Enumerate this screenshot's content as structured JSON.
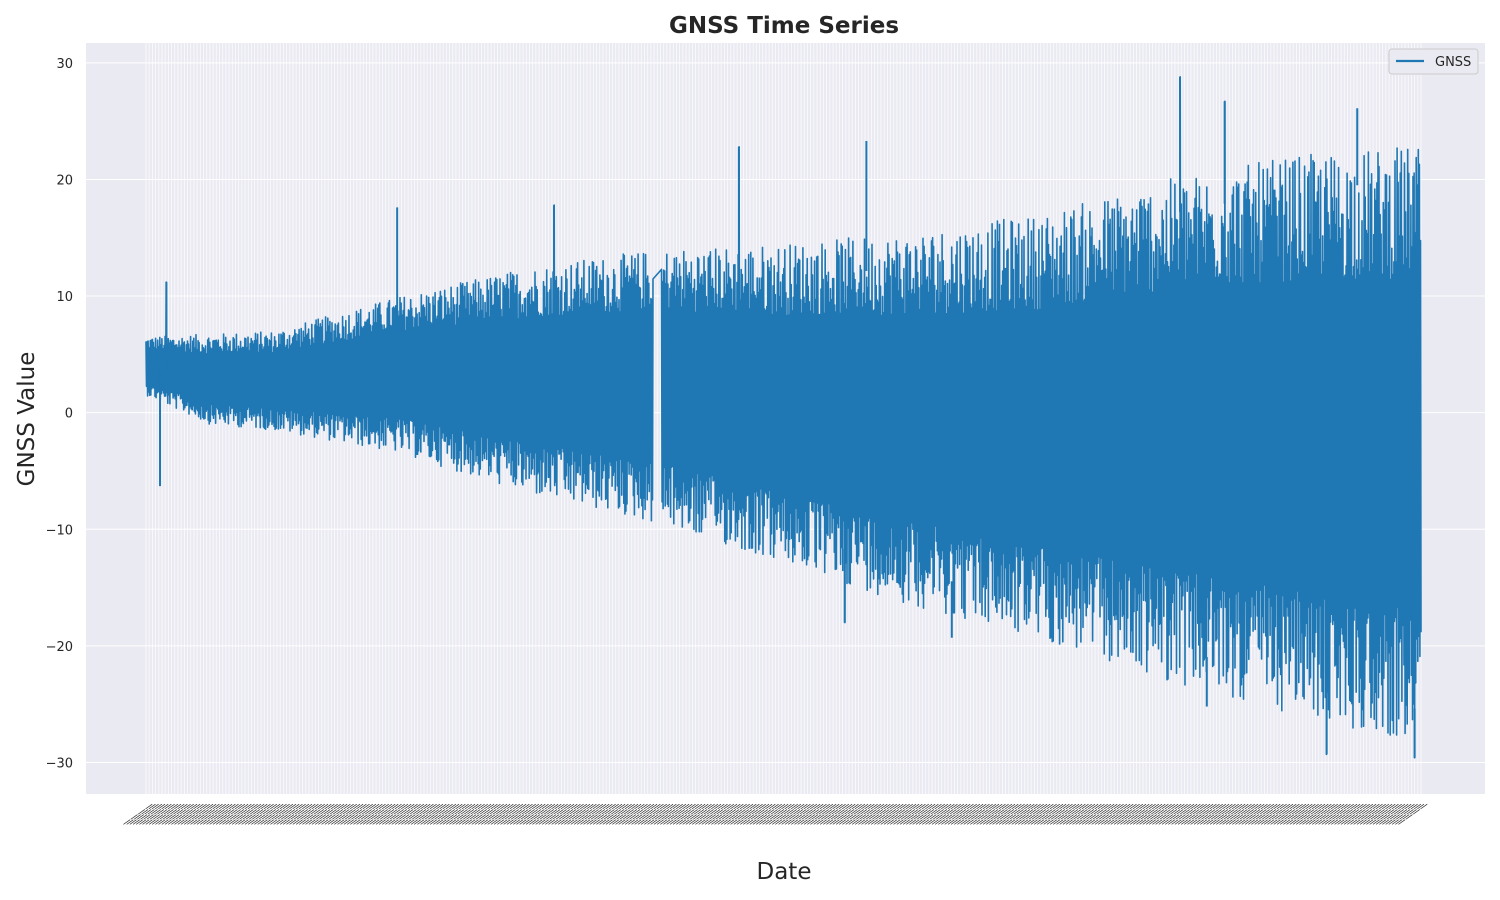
{
  "chart_data": {
    "type": "line",
    "title": "GNSS Time Series",
    "xlabel": "Date",
    "ylabel": "GNSS Value",
    "ylim": [
      -32.7,
      31.7
    ],
    "yticks": [
      -30,
      -20,
      -10,
      0,
      10,
      20,
      30
    ],
    "ytick_labels": [
      "−30",
      "−20",
      "−10",
      "0",
      "10",
      "20",
      "30"
    ],
    "x_count": 400,
    "grid": true,
    "legend": {
      "position": "top-right",
      "entries": [
        "GNSS"
      ]
    },
    "series": [
      {
        "name": "GNSS",
        "color": "#1f77b4",
        "gap_fraction": [
          0.398,
          0.404
        ],
        "upper_envelope": [
          {
            "t": 0.0,
            "v": 6.5
          },
          {
            "t": 0.1,
            "v": 7.0
          },
          {
            "t": 0.2,
            "v": 10.0
          },
          {
            "t": 0.3,
            "v": 12.5
          },
          {
            "t": 0.4,
            "v": 14.0
          },
          {
            "t": 0.5,
            "v": 14.5
          },
          {
            "t": 0.6,
            "v": 15.5
          },
          {
            "t": 0.7,
            "v": 17.0
          },
          {
            "t": 0.8,
            "v": 20.0
          },
          {
            "t": 0.9,
            "v": 22.0
          },
          {
            "t": 1.0,
            "v": 23.0
          }
        ],
        "lower_envelope": [
          {
            "t": 0.0,
            "v": 1.5
          },
          {
            "t": 0.05,
            "v": -1.0
          },
          {
            "t": 0.1,
            "v": -1.5
          },
          {
            "t": 0.2,
            "v": -3.5
          },
          {
            "t": 0.3,
            "v": -7.0
          },
          {
            "t": 0.4,
            "v": -9.5
          },
          {
            "t": 0.5,
            "v": -13.0
          },
          {
            "t": 0.6,
            "v": -16.5
          },
          {
            "t": 0.7,
            "v": -19.5
          },
          {
            "t": 0.8,
            "v": -23.0
          },
          {
            "t": 0.9,
            "v": -26.0
          },
          {
            "t": 1.0,
            "v": -28.5
          }
        ],
        "peaks": [
          {
            "t": 0.016,
            "v": 11.2
          },
          {
            "t": 0.197,
            "v": 17.6
          },
          {
            "t": 0.32,
            "v": 17.8
          },
          {
            "t": 0.465,
            "v": 22.8
          },
          {
            "t": 0.565,
            "v": 23.3
          },
          {
            "t": 0.811,
            "v": 28.8
          },
          {
            "t": 0.846,
            "v": 26.7
          },
          {
            "t": 0.95,
            "v": 26.1
          }
        ],
        "troughs": [
          {
            "t": 0.011,
            "v": -6.3
          },
          {
            "t": 0.548,
            "v": -18.0
          },
          {
            "t": 0.632,
            "v": -19.3
          },
          {
            "t": 0.832,
            "v": -25.2
          },
          {
            "t": 0.926,
            "v": -29.3
          },
          {
            "t": 0.995,
            "v": -29.6
          }
        ],
        "trend_start": 2.5,
        "trend_end": 0.0
      }
    ]
  }
}
